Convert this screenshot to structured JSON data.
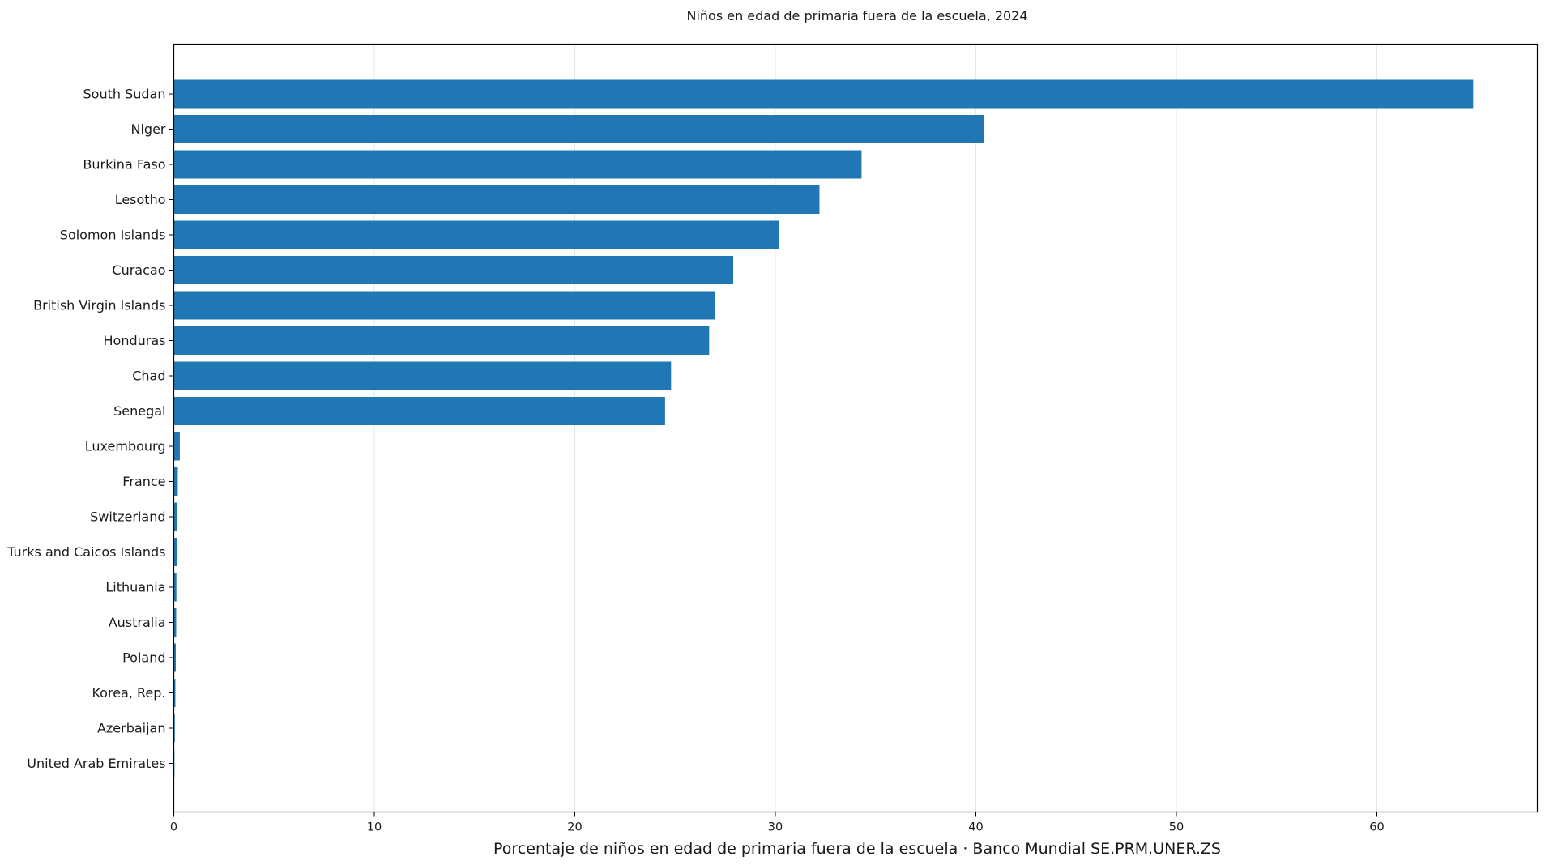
{
  "chart_data": {
    "type": "bar",
    "orientation": "horizontal",
    "title": "Niños en edad de primaria fuera de la escuela, 2024",
    "xlabel": "Porcentaje de niños en edad de primaria fuera de la escuela · Banco Mundial SE.PRM.UNER.ZS",
    "ylabel": "",
    "xlim": [
      0,
      68
    ],
    "xticks": [
      0,
      10,
      20,
      30,
      40,
      50,
      60
    ],
    "grid": "vertical",
    "bar_color": "#2077b4",
    "categories": [
      "South Sudan",
      "Niger",
      "Burkina Faso",
      "Lesotho",
      "Solomon Islands",
      "Curacao",
      "British Virgin Islands",
      "Honduras",
      "Chad",
      "Senegal",
      "Luxembourg",
      "France",
      "Switzerland",
      "Turks and Caicos Islands",
      "Lithuania",
      "Australia",
      "Poland",
      "Korea, Rep.",
      "Azerbaijan",
      "United Arab Emirates"
    ],
    "values": [
      64.8,
      40.4,
      34.3,
      32.2,
      30.2,
      27.9,
      27.0,
      26.7,
      24.8,
      24.5,
      0.3,
      0.2,
      0.18,
      0.15,
      0.13,
      0.12,
      0.1,
      0.08,
      0.05,
      0.03
    ]
  }
}
